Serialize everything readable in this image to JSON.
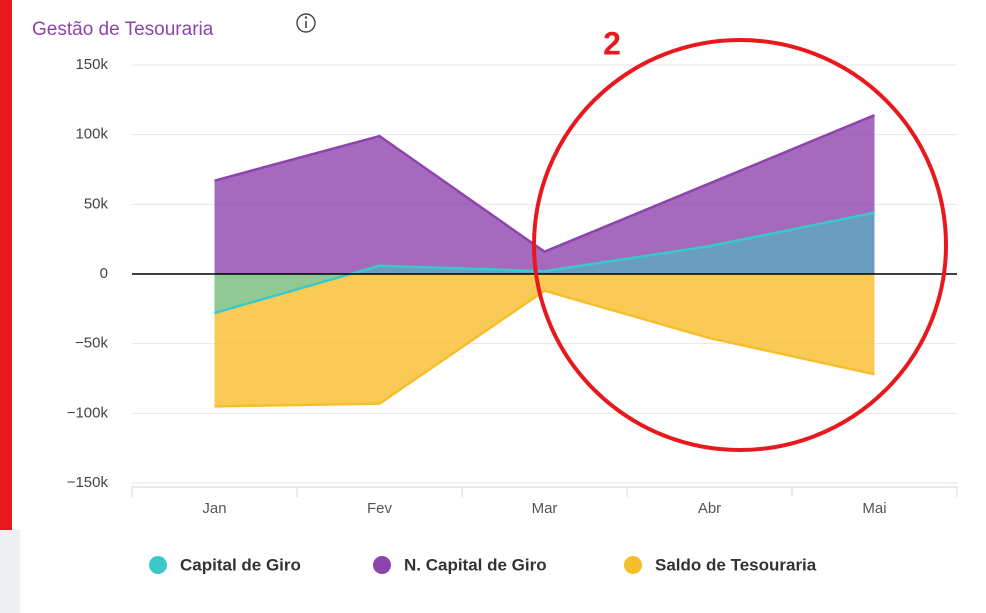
{
  "chart_data": {
    "type": "area",
    "title": "Gestão de Tesouraria",
    "annotations": [
      "2"
    ],
    "categories": [
      "Jan",
      "Fev",
      "Mar",
      "Abr",
      "Mai"
    ],
    "series": [
      {
        "name": "Saldo de Tesouraria",
        "color": "#f7be2c",
        "values": [
          -95000,
          -93000,
          -12000,
          -46000,
          -72000
        ]
      },
      {
        "name": "N. Capital de Giro",
        "color": "#8e44ad",
        "values": [
          67000,
          99000,
          16000,
          65000,
          114000
        ]
      },
      {
        "name": "Capital de Giro",
        "color": "#3cc8c8",
        "values": [
          -28000,
          6000,
          2000,
          20000,
          44000
        ]
      }
    ],
    "legend_order": [
      "Capital de Giro",
      "N. Capital de Giro",
      "Saldo de Tesouraria"
    ],
    "ylim": [
      -150000,
      150000
    ],
    "yticks": [
      {
        "value": -150000,
        "label": "−150k"
      },
      {
        "value": -100000,
        "label": "−100k"
      },
      {
        "value": -50000,
        "label": "−50k"
      },
      0,
      {
        "value": 50000,
        "label": "50k"
      },
      {
        "value": 100000,
        "label": "100k"
      },
      {
        "value": 150000,
        "label": "150k"
      }
    ],
    "grid": true,
    "legend": "bottom"
  }
}
